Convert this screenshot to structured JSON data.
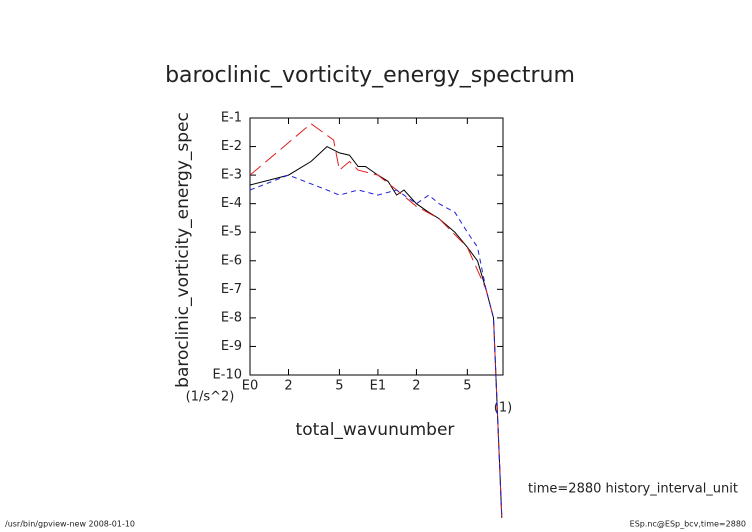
{
  "chart_data": {
    "type": "line",
    "title": "baroclinic_vorticity_energy_spectrum",
    "y_label": "baroclinic_vorticity_energy_spec",
    "y_units": "(1/s^2)",
    "x_label": "total_wavunumber",
    "x_units": "(1)",
    "annotation": "time=2880  history_interval_unit",
    "footer_left": "/usr/bin/gpview-new  2008-01-10",
    "footer_right": "ESp.nc@ESp_bcv,time=2880",
    "x_log": true,
    "y_log": true,
    "xlim": [
      1,
      95
    ],
    "ylim": [
      1e-10,
      0.1
    ],
    "xticks": [
      {
        "value": 1,
        "label": "E0"
      },
      2,
      5,
      {
        "value": 10,
        "label": "E1"
      },
      {
        "value": 20,
        "label": "2"
      },
      {
        "value": 50,
        "label": "5"
      }
    ],
    "yticks": [
      {
        "value": 0.1,
        "label": "E-1"
      },
      {
        "value": 0.01,
        "label": "E-2"
      },
      {
        "value": 0.001,
        "label": "E-3"
      },
      {
        "value": 0.0001,
        "label": "E-4"
      },
      {
        "value": 1e-05,
        "label": "E-5"
      },
      {
        "value": 1e-06,
        "label": "E-6"
      },
      {
        "value": 1e-07,
        "label": "E-7"
      },
      {
        "value": 1e-08,
        "label": "E-8"
      },
      {
        "value": 1e-09,
        "label": "E-9"
      },
      {
        "value": 1e-10,
        "label": "E-10"
      }
    ],
    "series": [
      {
        "color": "#000000",
        "dash": "none",
        "x": [
          1,
          2,
          3,
          4,
          5,
          6,
          7,
          8,
          10,
          12,
          14,
          16,
          20,
          25,
          30,
          40,
          50,
          60,
          70,
          80,
          93
        ],
        "values": [
          0.00045,
          0.001,
          0.003,
          0.01,
          0.006,
          0.005,
          0.002,
          0.002,
          0.001,
          0.0006,
          0.0002,
          0.0003,
          0.0001,
          5e-05,
          3e-05,
          1e-05,
          3e-06,
          1e-06,
          1e-07,
          1e-08,
          1e-15
        ]
      },
      {
        "color": "#e02020",
        "dash": "14 6",
        "x": [
          1,
          3,
          4.5,
          5,
          6,
          7,
          10,
          14,
          20,
          30,
          50,
          70,
          80,
          93
        ],
        "values": [
          0.001,
          0.063,
          0.017,
          0.0015,
          0.003,
          0.0015,
          0.001,
          0.0003,
          8e-05,
          3e-05,
          3e-06,
          1e-07,
          1e-08,
          1e-15
        ]
      },
      {
        "color": "#2020e0",
        "dash": "5 4",
        "x": [
          1,
          2,
          4,
          5,
          7,
          10,
          14,
          20,
          25,
          30,
          40,
          50,
          60,
          70,
          80,
          93
        ],
        "values": [
          0.0003,
          0.001,
          0.0003,
          0.0002,
          0.0003,
          0.0002,
          0.0003,
          0.0001,
          0.0002,
          0.0001,
          5e-05,
          1e-05,
          3e-06,
          1e-07,
          1e-08,
          1e-15
        ]
      }
    ]
  }
}
